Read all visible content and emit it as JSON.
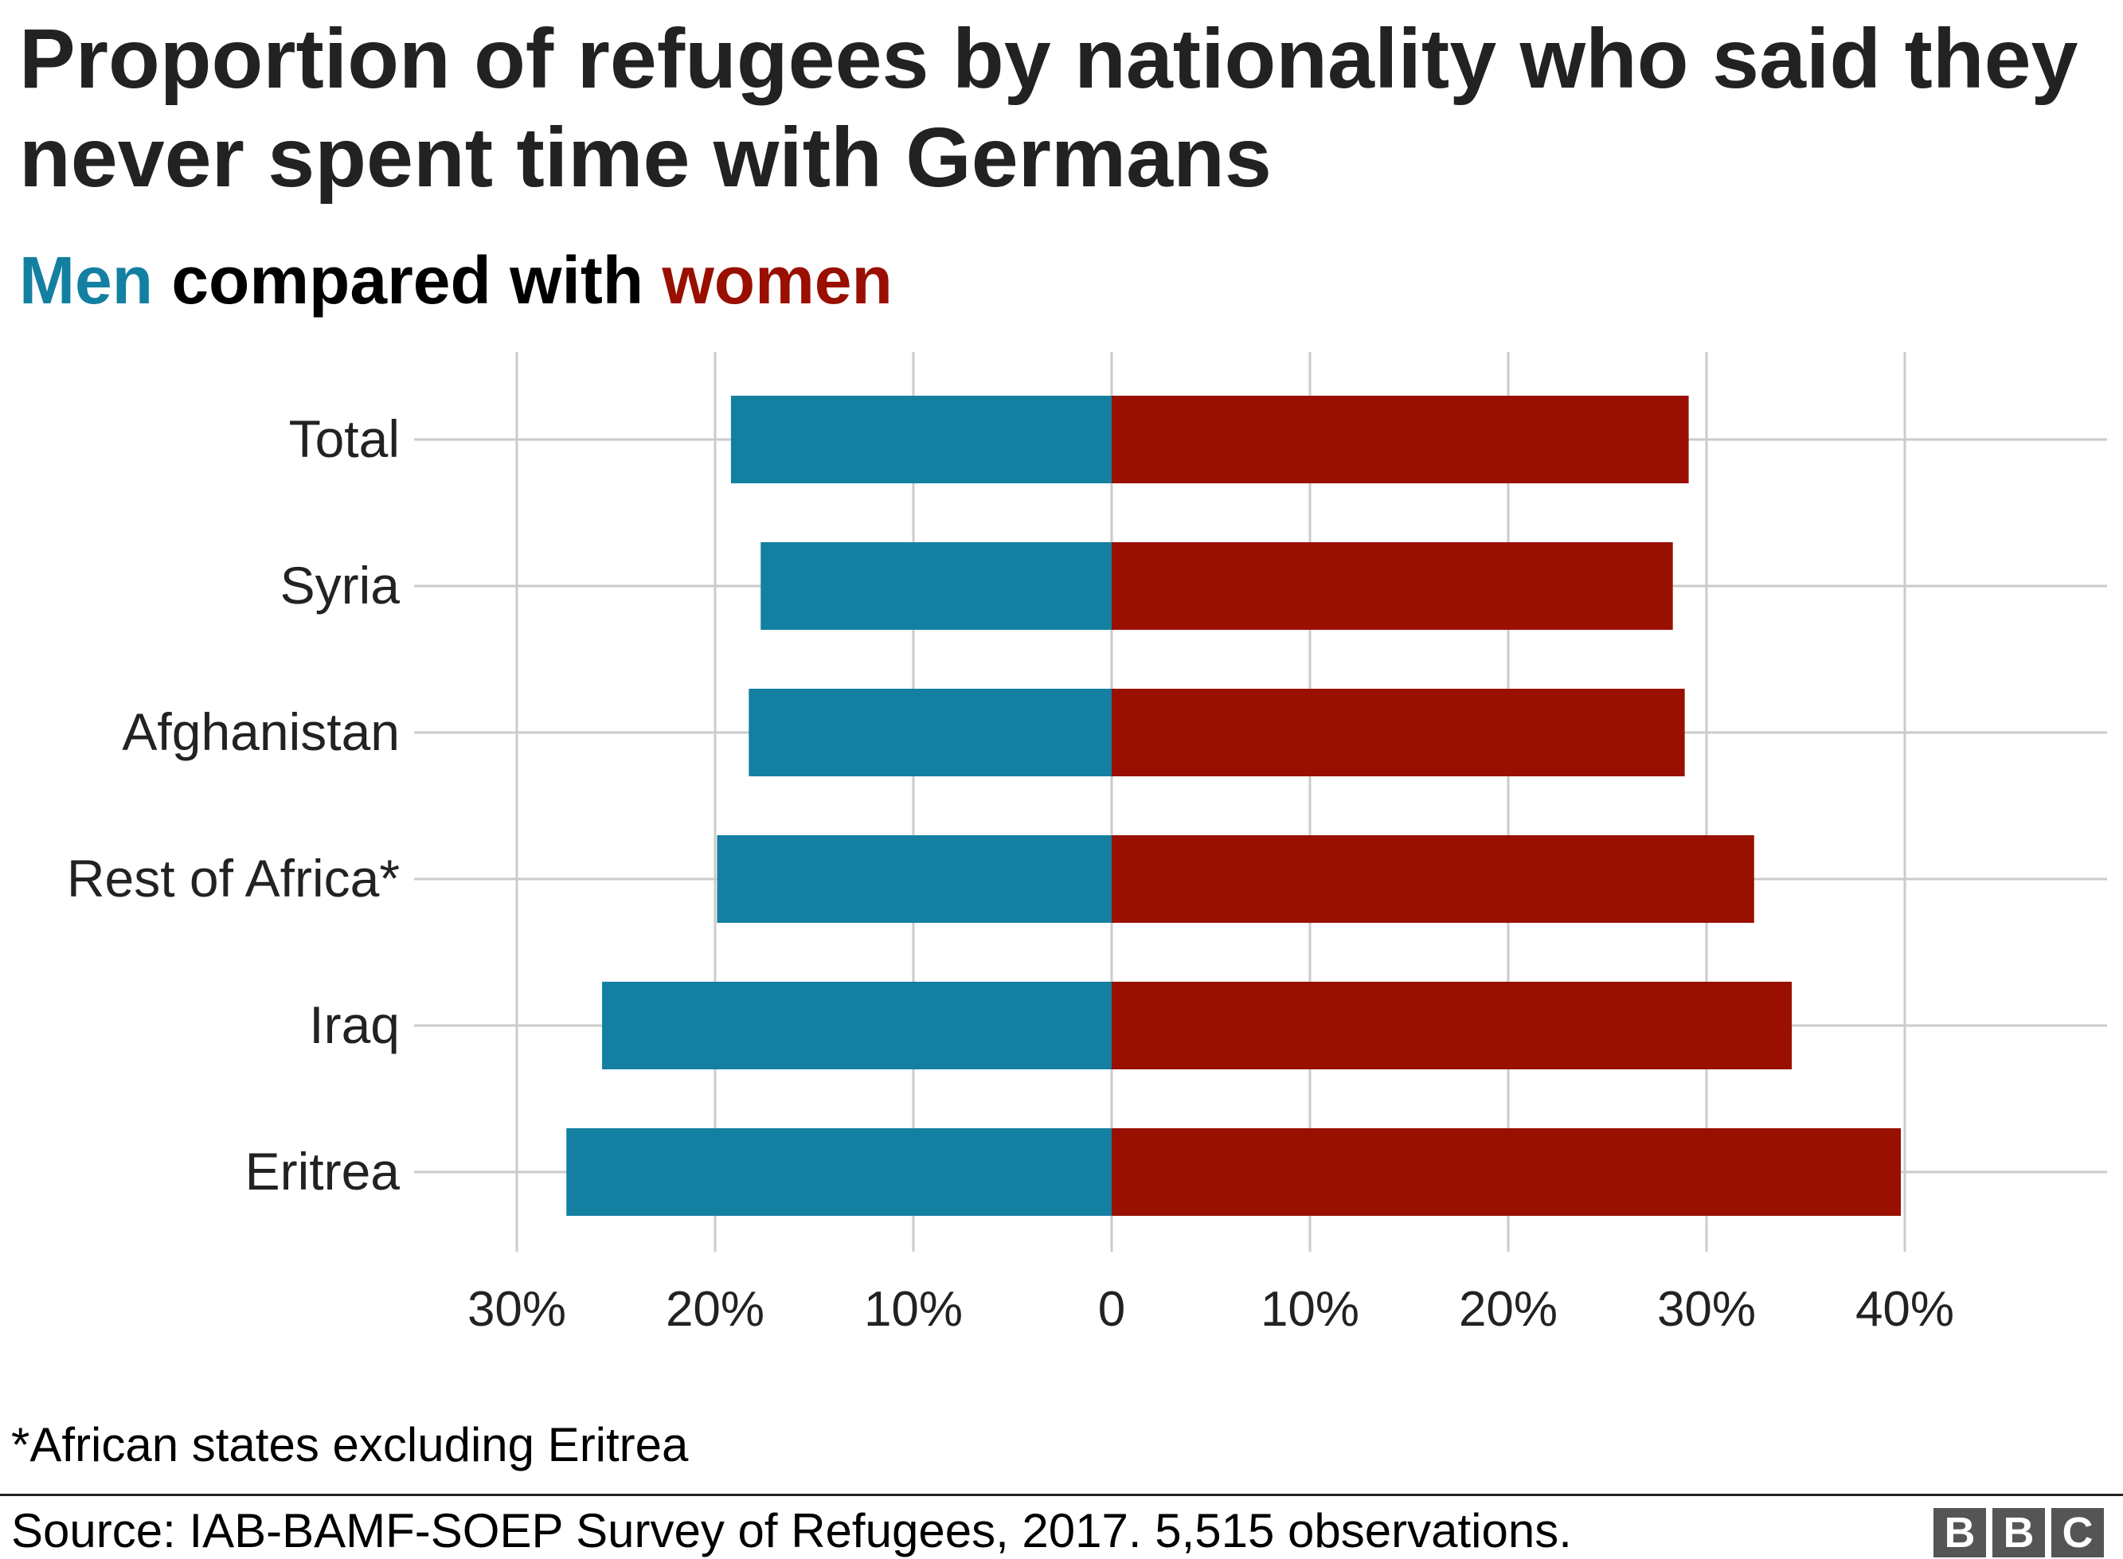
{
  "title": "Proportion of refugees by nationality who said they never spent time with Germans",
  "subtitle": {
    "men": "Men",
    "middle": " compared with ",
    "women": "women"
  },
  "footnote": "*African states excluding Eritrea",
  "source": "Source: IAB-BAMF-SOEP Survey of Refugees, 2017. 5,515 observations.",
  "logo": [
    "B",
    "B",
    "C"
  ],
  "colors": {
    "men": "#1380a1",
    "women": "#990f00",
    "grid": "#cbcbcb",
    "text": "#222222"
  },
  "chart_data": {
    "type": "bar",
    "orientation": "horizontal-diverging",
    "categories": [
      "Total",
      "Syria",
      "Afghanistan",
      "Rest of Africa*",
      "Iraq",
      "Eritrea"
    ],
    "series": [
      {
        "name": "Men",
        "values": [
          19.2,
          17.7,
          18.3,
          19.9,
          25.7,
          27.5
        ]
      },
      {
        "name": "Women",
        "values": [
          29.1,
          28.3,
          28.9,
          32.4,
          34.3,
          39.8
        ]
      }
    ],
    "xlim": [
      -30,
      40
    ],
    "xticks": [
      -30,
      -20,
      -10,
      0,
      10,
      20,
      30,
      40
    ],
    "xtick_labels": [
      "30%",
      "20%",
      "10%",
      "0",
      "10%",
      "20%",
      "30%",
      "40%"
    ],
    "grid": true,
    "legend": "subtitle"
  }
}
